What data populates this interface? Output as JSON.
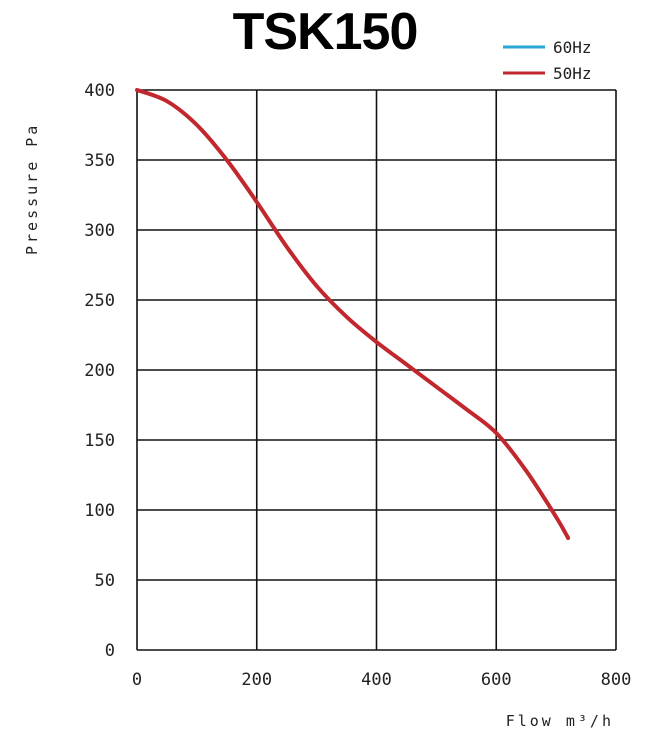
{
  "chart_data": {
    "type": "line",
    "title": "TSK150",
    "xlabel": "Flow m³/h",
    "ylabel": "Pressure Pa",
    "xlim": [
      0,
      800
    ],
    "ylim": [
      0,
      400
    ],
    "xticks": [
      0,
      200,
      400,
      600,
      800
    ],
    "yticks": [
      0,
      50,
      100,
      150,
      200,
      250,
      300,
      350,
      400
    ],
    "grid": true,
    "legend_position": "top-right",
    "series": [
      {
        "name": "60Hz",
        "color": "#2aa6d8",
        "x": [],
        "y": []
      },
      {
        "name": "50Hz",
        "color": "#c1272d",
        "x": [
          0,
          50,
          100,
          150,
          200,
          250,
          300,
          350,
          400,
          450,
          500,
          550,
          600,
          650,
          700,
          720
        ],
        "y": [
          400,
          392,
          375,
          350,
          320,
          288,
          260,
          238,
          220,
          204,
          188,
          172,
          155,
          128,
          95,
          80
        ]
      }
    ]
  }
}
